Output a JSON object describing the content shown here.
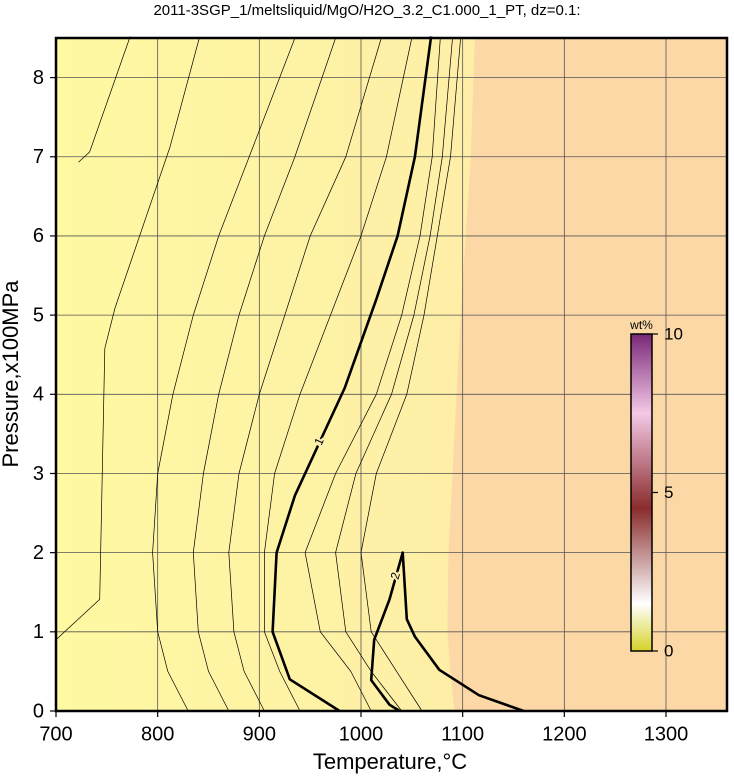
{
  "chart_data": {
    "type": "contour",
    "title": "2011-3SGP_1/meltsliquid/MgO/H2O_3.2_C1.000_1_PT, dz=0.1:",
    "x_label": "Temperature,°C",
    "y_label": "Pressure,x100MPa",
    "xlim": [
      700,
      1360
    ],
    "ylim": [
      0,
      8.5
    ],
    "xticks": [
      700,
      800,
      900,
      1000,
      1100,
      1200,
      1300
    ],
    "yticks": [
      0,
      1,
      2,
      3,
      4,
      5,
      6,
      7,
      8
    ],
    "grid": true,
    "background": {
      "left_color": "#fff9a2",
      "right_color": "#fde7aa",
      "high_color": "#fcd8a6",
      "boundary": {
        "x": [
          1092,
          1088,
          1085,
          1086,
          1090,
          1094,
          1098,
          1103,
          1108,
          1112
        ],
        "y": [
          0,
          0.5,
          1,
          2,
          3,
          4,
          5,
          6,
          7,
          8.5
        ]
      }
    },
    "contours": [
      {
        "x": [
          722,
          733,
          773
        ],
        "y": [
          6.93,
          7.06,
          8.52
        ]
      },
      {
        "x": [
          700,
          743,
          748,
          758,
          812,
          841
        ],
        "y": [
          0.9,
          1.41,
          4.58,
          5.09,
          7.12,
          8.5
        ]
      },
      {
        "x": [
          830,
          810,
          800,
          795,
          800,
          815,
          835,
          860,
          890,
          935
        ],
        "y": [
          0,
          0.5,
          1,
          2,
          3,
          4,
          5,
          6,
          7,
          8.5
        ]
      },
      {
        "x": [
          870,
          850,
          840,
          835,
          845,
          860,
          880,
          905,
          935,
          975
        ],
        "y": [
          0,
          0.5,
          1,
          2,
          3,
          4,
          5,
          6,
          7,
          8.5
        ]
      },
      {
        "x": [
          905,
          885,
          875,
          870,
          880,
          900,
          925,
          950,
          985,
          1020
        ],
        "y": [
          0,
          0.5,
          1,
          2,
          3,
          4,
          5,
          6,
          7,
          8.5
        ]
      },
      {
        "x": [
          940,
          920,
          905,
          905,
          915,
          940,
          970,
          1000,
          1025,
          1050
        ],
        "y": [
          0,
          0.5,
          1,
          2,
          3,
          4,
          5,
          6,
          7,
          8.5
        ]
      },
      {
        "x": [
          979,
          930,
          913,
          917,
          935,
          984,
          1015,
          1036,
          1053,
          1069
        ],
        "y": [
          0,
          0.4,
          1,
          2,
          2.72,
          4.08,
          5.2,
          6,
          7,
          8.52
        ],
        "label": "1"
      },
      {
        "x": [
          1010,
          990,
          960,
          945,
          975,
          1015,
          1040,
          1058,
          1070,
          1078
        ],
        "y": [
          0,
          0.5,
          1,
          2,
          3,
          4,
          5,
          6,
          7,
          8.5
        ]
      },
      {
        "x": [
          1040,
          1010,
          985,
          975,
          995,
          1030,
          1052,
          1068,
          1080,
          1090
        ],
        "y": [
          0,
          0.5,
          1,
          2,
          3,
          4,
          5,
          6,
          7,
          8.5
        ]
      },
      {
        "x": [
          1060,
          1035,
          1010,
          1000,
          1015,
          1045,
          1062,
          1075,
          1088,
          1098
        ],
        "y": [
          0,
          0.5,
          1,
          2,
          3,
          4,
          5,
          6,
          7,
          8.5
        ]
      },
      {
        "x": [
          1038,
          1028,
          1010,
          1013,
          1028,
          1041,
          1045,
          1053,
          1077,
          1116,
          1160
        ],
        "y": [
          0,
          0.08,
          0.39,
          0.9,
          1.41,
          2.0,
          1.16,
          0.94,
          0.52,
          0.2,
          0
        ],
        "label": "2"
      }
    ],
    "colorbar": {
      "label": "wt%",
      "lim": [
        0,
        10
      ],
      "ticks": [
        0,
        5,
        10
      ],
      "colormap": [
        {
          "value": 0,
          "color": "#d6d22a"
        },
        {
          "value": 1.5,
          "color": "#ffffff"
        },
        {
          "value": 4.5,
          "color": "#8a2c2c"
        },
        {
          "value": 7.5,
          "color": "#f4c8e6"
        },
        {
          "value": 10,
          "color": "#7a2878"
        }
      ]
    }
  }
}
